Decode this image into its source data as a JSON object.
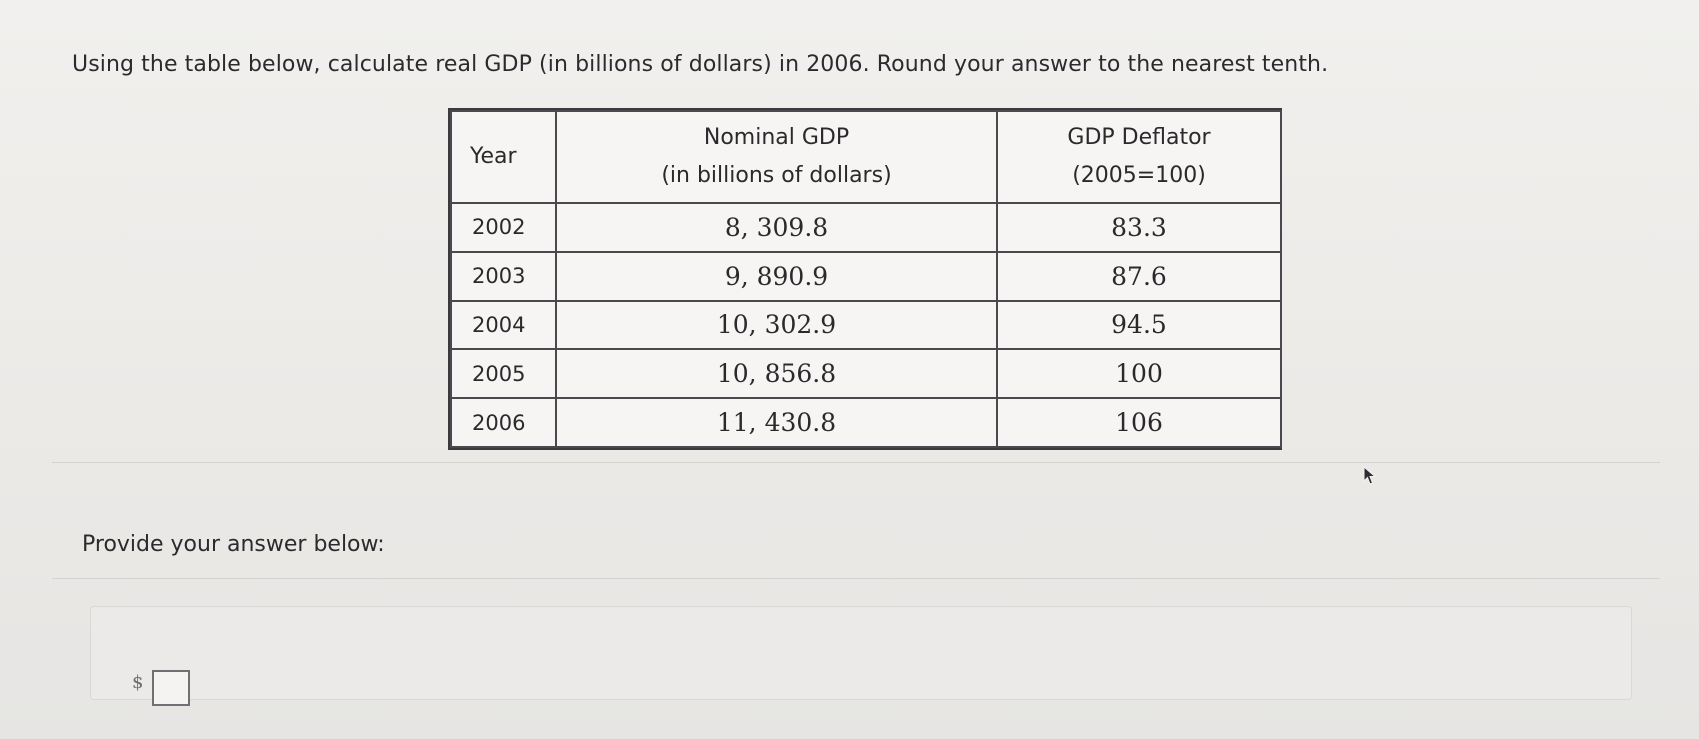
{
  "question": {
    "text": "Using the table below, calculate real GDP (in billions of dollars) in 2006. Round your answer to the nearest tenth."
  },
  "table": {
    "headers": {
      "year": "Year",
      "nominal_line1": "Nominal GDP",
      "nominal_line2": "(in billions of dollars)",
      "deflator_line1": "GDP Deflator",
      "deflator_line2": "(2005=100)"
    },
    "rows": [
      {
        "year": "2002",
        "nominal": "8, 309.8",
        "deflator": "83.3"
      },
      {
        "year": "2003",
        "nominal": "9, 890.9",
        "deflator": "87.6"
      },
      {
        "year": "2004",
        "nominal": "10, 302.9",
        "deflator": "94.5"
      },
      {
        "year": "2005",
        "nominal": "10, 856.8",
        "deflator": "100"
      },
      {
        "year": "2006",
        "nominal": "11, 430.8",
        "deflator": "106"
      }
    ]
  },
  "answer": {
    "prompt": "Provide your answer below:",
    "currency_symbol": "$",
    "value": ""
  },
  "colors": {
    "background": "#ecebe9",
    "text": "#2b2b2e",
    "table_border": "#3b3b3e"
  }
}
